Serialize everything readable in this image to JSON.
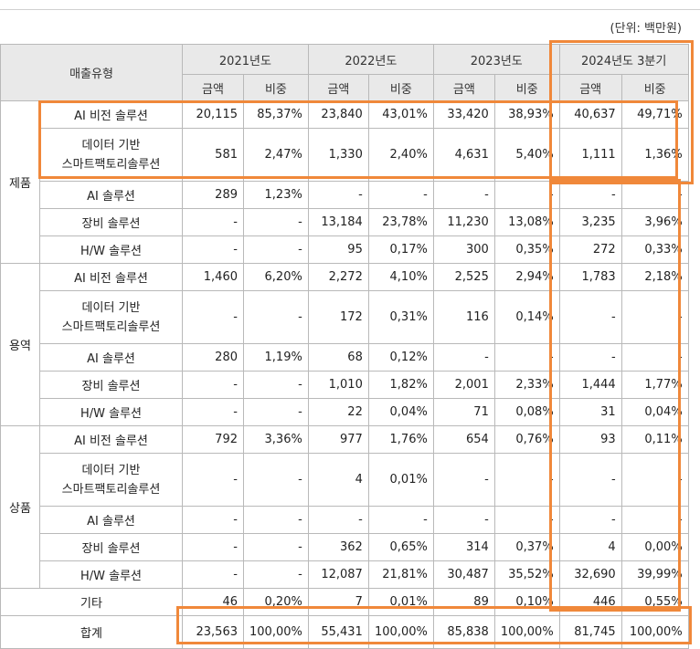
{
  "unit_label": "(단위: 백만원)",
  "header": {
    "type_label": "매출유형",
    "years": [
      "2021년도",
      "2022년도",
      "2023년도",
      "2024년도 3분기"
    ],
    "amount_label": "금액",
    "ratio_label": "비중"
  },
  "groups": [
    {
      "name": "제품",
      "rows": [
        {
          "label": "AI 비전 솔루션",
          "values": [
            "20,115",
            "85,37%",
            "23,840",
            "43,01%",
            "33,420",
            "38,93%",
            "40,637",
            "49,71%"
          ]
        },
        {
          "label": "데이터 기반\n스마트팩토리솔루션",
          "values": [
            "581",
            "2,47%",
            "1,330",
            "2,40%",
            "4,631",
            "5,40%",
            "1,111",
            "1,36%"
          ]
        },
        {
          "label": "AI 솔루션",
          "values": [
            "289",
            "1,23%",
            "-",
            "-",
            "-",
            "-",
            "-",
            "-"
          ]
        },
        {
          "label": "장비 솔루션",
          "values": [
            "-",
            "-",
            "13,184",
            "23,78%",
            "11,230",
            "13,08%",
            "3,235",
            "3,96%"
          ]
        },
        {
          "label": "H/W 솔루션",
          "values": [
            "-",
            "-",
            "95",
            "0,17%",
            "300",
            "0,35%",
            "272",
            "0,33%"
          ]
        }
      ]
    },
    {
      "name": "용역",
      "rows": [
        {
          "label": "AI 비전 솔루션",
          "values": [
            "1,460",
            "6,20%",
            "2,272",
            "4,10%",
            "2,525",
            "2,94%",
            "1,783",
            "2,18%"
          ]
        },
        {
          "label": "데이터 기반\n스마트팩토리솔루션",
          "values": [
            "-",
            "-",
            "172",
            "0,31%",
            "116",
            "0,14%",
            "-",
            "-"
          ]
        },
        {
          "label": "AI 솔루션",
          "values": [
            "280",
            "1,19%",
            "68",
            "0,12%",
            "-",
            "-",
            "-",
            "-"
          ]
        },
        {
          "label": "장비 솔루션",
          "values": [
            "-",
            "-",
            "1,010",
            "1,82%",
            "2,001",
            "2,33%",
            "1,444",
            "1,77%"
          ]
        },
        {
          "label": "H/W 솔루션",
          "values": [
            "-",
            "-",
            "22",
            "0,04%",
            "71",
            "0,08%",
            "31",
            "0,04%"
          ]
        }
      ]
    },
    {
      "name": "상품",
      "rows": [
        {
          "label": "AI 비전 솔루션",
          "values": [
            "792",
            "3,36%",
            "977",
            "1,76%",
            "654",
            "0,76%",
            "93",
            "0,11%"
          ]
        },
        {
          "label": "데이터 기반\n스마트팩토리솔루션",
          "values": [
            "-",
            "-",
            "4",
            "0,01%",
            "-",
            "-",
            "-",
            "-"
          ]
        },
        {
          "label": "AI 솔루션",
          "values": [
            "-",
            "-",
            "-",
            "-",
            "-",
            "-",
            "-",
            "-"
          ]
        },
        {
          "label": "장비 솔루션",
          "values": [
            "-",
            "-",
            "362",
            "0,65%",
            "314",
            "0,37%",
            "4",
            "0,00%"
          ]
        },
        {
          "label": "H/W 솔루션",
          "values": [
            "-",
            "-",
            "12,087",
            "21,81%",
            "30,487",
            "35,52%",
            "32,690",
            "39,99%"
          ]
        }
      ]
    }
  ],
  "other_row": {
    "label": "기타",
    "values": [
      "46",
      "0,20%",
      "7",
      "0,01%",
      "89",
      "0,10%",
      "446",
      "0,55%"
    ]
  },
  "total_row": {
    "label": "합계",
    "values": [
      "23,563",
      "100,00%",
      "55,431",
      "100,00%",
      "85,838",
      "100,00%",
      "81,745",
      "100,00%"
    ]
  },
  "highlight_color": "#f0883a"
}
